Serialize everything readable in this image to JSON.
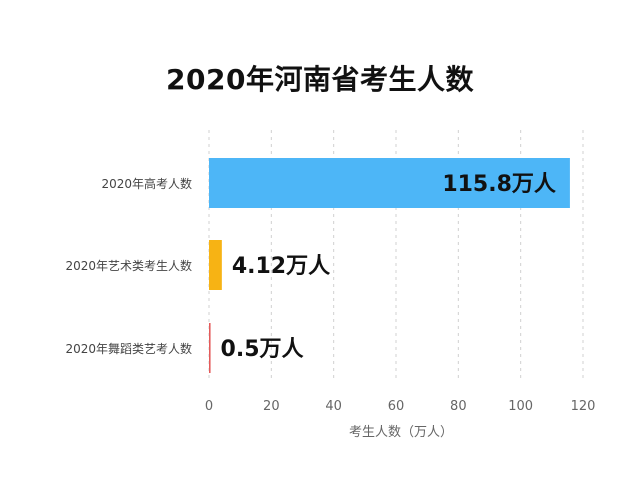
{
  "chart_data": {
    "type": "bar",
    "orientation": "horizontal",
    "title": "2020年河南省考生人数",
    "xlabel": "考生人数（万人）",
    "ylabel": "",
    "xlim": [
      0,
      120
    ],
    "xticks": [
      0,
      20,
      40,
      60,
      80,
      100,
      120
    ],
    "grid": "vertical-dashed",
    "categories": [
      "2020年高考人数",
      "2020年艺术类考生人数",
      "2020年舞蹈类艺考人数"
    ],
    "values": [
      115.8,
      4.12,
      0.5
    ],
    "data_labels": [
      "115.8万人",
      "4.12万人",
      "0.5万人"
    ],
    "colors": [
      "#4DB6F7",
      "#F7B314",
      "#E45A5A"
    ]
  }
}
